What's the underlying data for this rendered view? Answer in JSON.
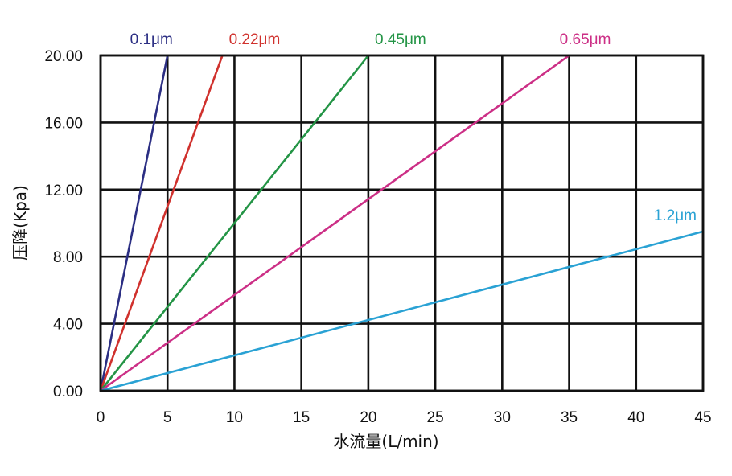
{
  "chart_data": {
    "type": "line",
    "xlabel": "水流量(L/min)",
    "ylabel": "压降(Kpa)",
    "xlim": [
      0,
      45
    ],
    "ylim": [
      0,
      20
    ],
    "x_ticks": [
      "0",
      "5",
      "10",
      "15",
      "20",
      "25",
      "30",
      "35",
      "40",
      "45"
    ],
    "y_ticks": [
      "0.00",
      "4.00",
      "8.00",
      "12.00",
      "16.00",
      "20.00"
    ],
    "grid": true,
    "series": [
      {
        "name": "0.1μm",
        "color": "#2b2e83",
        "points": [
          [
            0,
            0
          ],
          [
            5,
            20
          ]
        ]
      },
      {
        "name": "0.22μm",
        "color": "#d0312d",
        "points": [
          [
            0,
            0
          ],
          [
            9.1,
            20
          ]
        ]
      },
      {
        "name": "0.45μm",
        "color": "#239445",
        "points": [
          [
            0,
            0
          ],
          [
            20,
            20
          ]
        ]
      },
      {
        "name": "0.65μm",
        "color": "#cc2f86",
        "points": [
          [
            0,
            0
          ],
          [
            35,
            20
          ]
        ]
      },
      {
        "name": "1.2μm",
        "color": "#2aa2d4",
        "points": [
          [
            0,
            0
          ],
          [
            45,
            9.5
          ]
        ]
      }
    ]
  }
}
